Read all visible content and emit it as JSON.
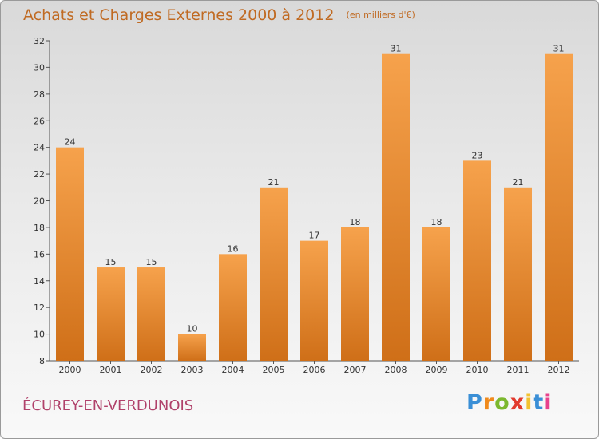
{
  "header": {
    "title": "Achats et Charges Externes 2000 à 2012",
    "unit": "(en milliers d'€)"
  },
  "footer": {
    "place": "ÉCUREY-EN-VERDUNOIS",
    "brand": [
      "P",
      "r",
      "o",
      "x",
      "i",
      "t",
      "i"
    ],
    "brand_colors": [
      "#3a8fd6",
      "#f08a1c",
      "#7cb82f",
      "#e23a2e",
      "#f2c230",
      "#3a8fd6",
      "#e8428c"
    ]
  },
  "colors": {
    "bar_light": "#f6a24c",
    "bar_dark": "#cf6f18",
    "title": "#c06a22",
    "place": "#b0416a",
    "axis": "#555555"
  },
  "chart_data": {
    "type": "bar",
    "title": "Achats et Charges Externes 2000 à 2012",
    "subtitle": "(en milliers d'€)",
    "xlabel": "",
    "ylabel": "",
    "categories": [
      "2000",
      "2001",
      "2002",
      "2003",
      "2004",
      "2005",
      "2006",
      "2007",
      "2008",
      "2009",
      "2010",
      "2011",
      "2012"
    ],
    "values": [
      24,
      15,
      15,
      10,
      16,
      21,
      17,
      18,
      31,
      18,
      23,
      21,
      31
    ],
    "ylim": [
      8,
      32
    ],
    "yticks": [
      8,
      10,
      12,
      14,
      16,
      18,
      20,
      22,
      24,
      26,
      28,
      30,
      32
    ],
    "grid": false,
    "legend": "none"
  }
}
